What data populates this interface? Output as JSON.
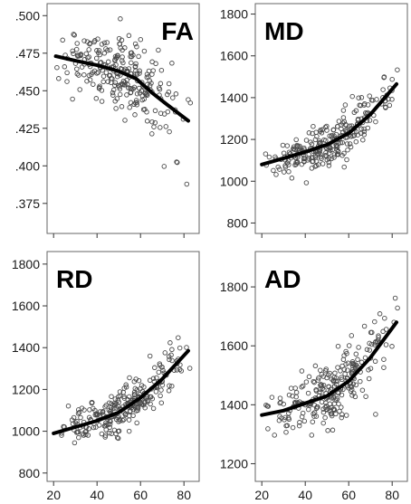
{
  "chart_data": [
    {
      "type": "scatter",
      "title": "FA",
      "x_ticks": [
        20,
        40,
        60,
        80
      ],
      "x_tick_labels": [
        "",
        "",
        "",
        ""
      ],
      "xlim": [
        17,
        87
      ],
      "ylim": [
        0.355,
        0.508
      ],
      "y_ticks": [
        0.375,
        0.4,
        0.425,
        0.45,
        0.475,
        0.5
      ],
      "y_tick_labels": [
        ".375",
        ".400",
        ".425",
        ".450",
        ".475",
        ".500"
      ],
      "trend": {
        "x": [
          21,
          30,
          40,
          50,
          58,
          65,
          72,
          82
        ],
        "y": [
          0.473,
          0.47,
          0.467,
          0.463,
          0.458,
          0.449,
          0.441,
          0.43
        ]
      },
      "points": {
        "n": 260,
        "x_range": [
          20,
          83
        ],
        "y_spread": 0.012
      }
    },
    {
      "type": "scatter",
      "title": "MD",
      "x_ticks": [
        20,
        40,
        60,
        80
      ],
      "x_tick_labels": [
        "",
        "",
        "",
        ""
      ],
      "xlim": [
        17,
        87
      ],
      "ylim": [
        750,
        1850
      ],
      "y_ticks": [
        800,
        1000,
        1200,
        1400,
        1600,
        1800
      ],
      "y_tick_labels": [
        "800",
        "1000",
        "1200",
        "1400",
        "1600",
        "1800"
      ],
      "trend": {
        "x": [
          20,
          30,
          40,
          50,
          60,
          70,
          82
        ],
        "y": [
          1080,
          1110,
          1140,
          1175,
          1230,
          1320,
          1465
        ]
      },
      "points": {
        "n": 260,
        "x_range": [
          20,
          84
        ],
        "y_spread": 55
      }
    },
    {
      "type": "scatter",
      "title": "RD",
      "x_ticks": [
        20,
        40,
        60,
        80
      ],
      "x_tick_labels": [
        "20",
        "40",
        "60",
        "80"
      ],
      "xlim": [
        17,
        87
      ],
      "ylim": [
        760,
        1860
      ],
      "y_ticks": [
        800,
        1000,
        1200,
        1400,
        1600,
        1800
      ],
      "y_tick_labels": [
        "800",
        "1000",
        "1200",
        "1400",
        "1600",
        "1800"
      ],
      "trend": {
        "x": [
          20,
          30,
          40,
          50,
          60,
          70,
          82
        ],
        "y": [
          990,
          1020,
          1050,
          1090,
          1160,
          1250,
          1385
        ]
      },
      "points": {
        "n": 260,
        "x_range": [
          20,
          84
        ],
        "y_spread": 55
      }
    },
    {
      "type": "scatter",
      "title": "AD",
      "x_ticks": [
        20,
        40,
        60,
        80
      ],
      "x_tick_labels": [
        "20",
        "40",
        "60",
        "80"
      ],
      "xlim": [
        17,
        87
      ],
      "ylim": [
        1140,
        1920
      ],
      "y_ticks": [
        1200,
        1400,
        1600,
        1800
      ],
      "y_tick_labels": [
        "1200",
        "1400",
        "1600",
        "1800"
      ],
      "trend": {
        "x": [
          20,
          30,
          40,
          50,
          60,
          70,
          82
        ],
        "y": [
          1365,
          1380,
          1405,
          1430,
          1480,
          1560,
          1680
        ]
      },
      "points": {
        "n": 260,
        "x_range": [
          20,
          84
        ],
        "y_spread": 55
      }
    }
  ]
}
